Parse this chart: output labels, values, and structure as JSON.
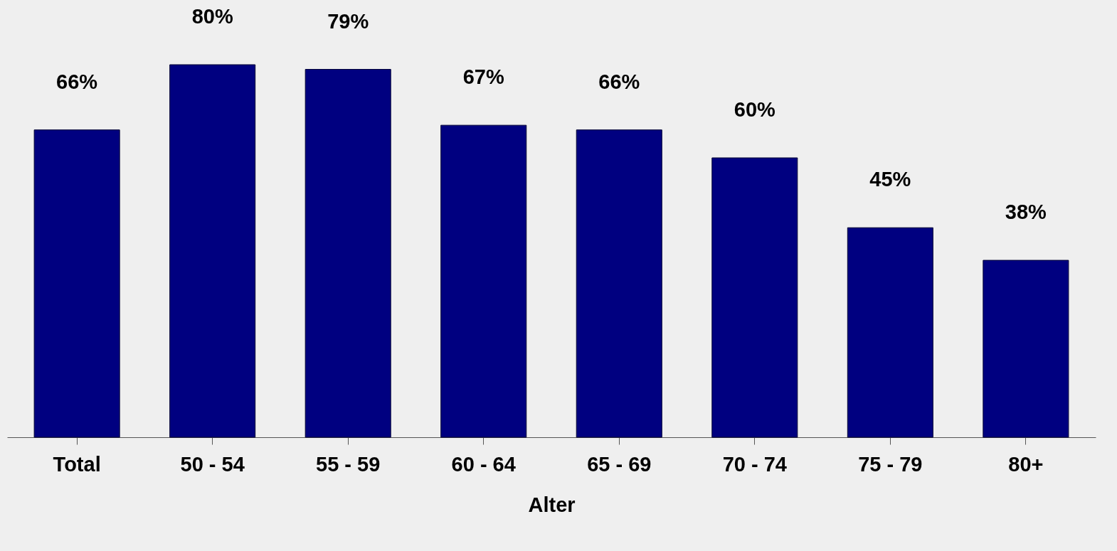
{
  "chart_data": {
    "type": "bar",
    "xlabel": "Alter",
    "categories": [
      "Total",
      "50 - 54",
      "55 - 59",
      "60 - 64",
      "65 - 69",
      "70 - 74",
      "75 - 79",
      "80+"
    ],
    "values": [
      66,
      80,
      79,
      67,
      66,
      60,
      45,
      38
    ],
    "value_labels": [
      "66%",
      "80%",
      "79%",
      "67%",
      "66%",
      "60%",
      "45%",
      "38%"
    ],
    "color": "#000080",
    "grid": false
  }
}
